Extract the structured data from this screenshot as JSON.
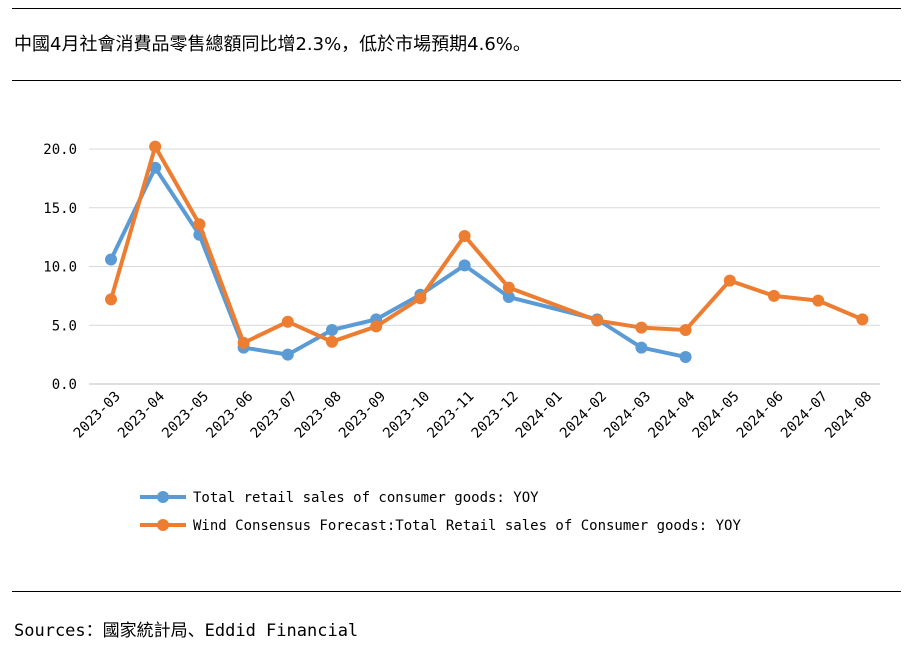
{
  "title": "中國4月社會消費品零售總額同比增2.3%，低於市場預期4.6%。",
  "source": "Sources：國家統計局、Eddid Financial",
  "chart_data": {
    "type": "line",
    "categories": [
      "2023-03",
      "2023-04",
      "2023-05",
      "2023-06",
      "2023-07",
      "2023-08",
      "2023-09",
      "2023-10",
      "2023-11",
      "2023-12",
      "2024-01",
      "2024-02",
      "2024-03",
      "2024-04",
      "2024-05",
      "2024-06",
      "2024-07",
      "2024-08"
    ],
    "yticks": [
      "0.0",
      "5.0",
      "10.0",
      "15.0",
      "20.0"
    ],
    "ylim": [
      0,
      20
    ],
    "grid": true,
    "legend_position": "bottom-left",
    "series": [
      {
        "name": "Total retail sales of consumer goods: YOY",
        "color": "#5b9bd5",
        "values": [
          10.6,
          18.4,
          12.7,
          3.1,
          2.5,
          4.6,
          5.5,
          7.6,
          10.1,
          7.4,
          null,
          5.5,
          3.1,
          2.3,
          null,
          null,
          null,
          null
        ]
      },
      {
        "name": "Wind Consensus Forecast:Total Retail sales of Consumer goods: YOY",
        "color": "#ed7d31",
        "values": [
          7.2,
          20.2,
          13.6,
          3.5,
          5.3,
          3.6,
          4.9,
          7.3,
          12.6,
          8.2,
          null,
          5.4,
          4.8,
          4.6,
          8.8,
          7.5,
          7.1,
          5.5
        ]
      }
    ]
  }
}
